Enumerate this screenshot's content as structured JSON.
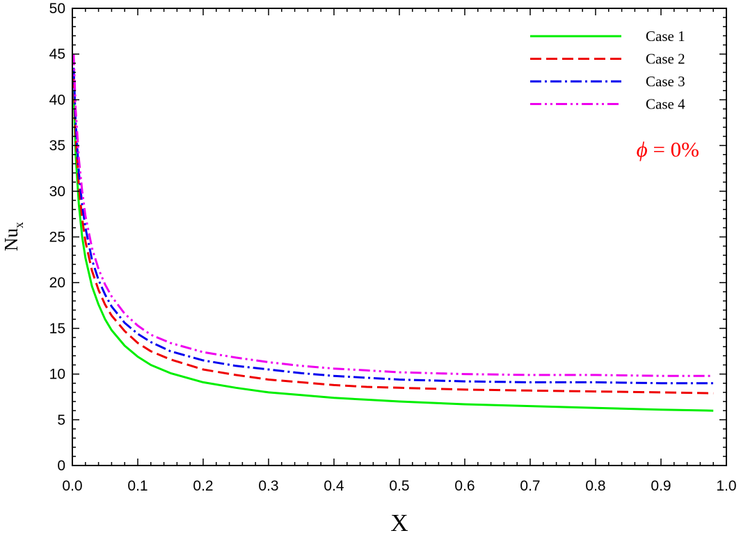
{
  "chart_data": {
    "type": "line",
    "title": "",
    "xlabel": "X",
    "ylabel": "Nu",
    "ylabel_subscript": "x",
    "xlim": [
      0,
      1.0
    ],
    "ylim": [
      0,
      50
    ],
    "xticks": [
      "0.0",
      "0.1",
      "0.2",
      "0.3",
      "0.4",
      "0.5",
      "0.6",
      "0.7",
      "0.8",
      "0.9",
      "1.0"
    ],
    "yticks": [
      "0",
      "5",
      "10",
      "15",
      "20",
      "25",
      "30",
      "35",
      "40",
      "45",
      "50"
    ],
    "grid": false,
    "legend_position": "top-right",
    "annotation": {
      "symbol": "ϕ",
      "text": " = 0%",
      "color": "#ff0000"
    },
    "series": [
      {
        "name": "Case 1",
        "color": "#00ee00",
        "style": "solid",
        "x": [
          0.002,
          0.005,
          0.01,
          0.015,
          0.02,
          0.03,
          0.04,
          0.05,
          0.06,
          0.08,
          0.1,
          0.12,
          0.15,
          0.2,
          0.25,
          0.3,
          0.35,
          0.4,
          0.45,
          0.5,
          0.6,
          0.7,
          0.8,
          0.9,
          0.98
        ],
        "y": [
          41.0,
          34.0,
          28.5,
          25.0,
          22.7,
          19.6,
          17.6,
          16.0,
          14.8,
          13.1,
          11.9,
          11.0,
          10.1,
          9.1,
          8.5,
          8.0,
          7.7,
          7.4,
          7.2,
          7.0,
          6.7,
          6.5,
          6.3,
          6.1,
          6.0
        ]
      },
      {
        "name": "Case 2",
        "color": "#ee0000",
        "style": "dashed",
        "x": [
          0.002,
          0.005,
          0.01,
          0.015,
          0.02,
          0.03,
          0.04,
          0.05,
          0.06,
          0.08,
          0.1,
          0.12,
          0.15,
          0.2,
          0.25,
          0.3,
          0.35,
          0.4,
          0.45,
          0.5,
          0.6,
          0.7,
          0.8,
          0.9,
          0.98
        ],
        "y": [
          42.5,
          36.0,
          30.5,
          27.0,
          24.5,
          21.3,
          19.2,
          17.6,
          16.4,
          14.7,
          13.4,
          12.5,
          11.6,
          10.5,
          9.9,
          9.4,
          9.1,
          8.8,
          8.6,
          8.5,
          8.3,
          8.2,
          8.1,
          8.0,
          7.9
        ]
      },
      {
        "name": "Case 3",
        "color": "#0000ee",
        "style": "dashdot",
        "x": [
          0.002,
          0.005,
          0.01,
          0.015,
          0.02,
          0.03,
          0.04,
          0.05,
          0.06,
          0.08,
          0.1,
          0.12,
          0.15,
          0.2,
          0.25,
          0.3,
          0.35,
          0.4,
          0.45,
          0.5,
          0.6,
          0.7,
          0.8,
          0.9,
          0.98
        ],
        "y": [
          43.5,
          37.5,
          32.0,
          28.5,
          26.0,
          22.5,
          20.3,
          18.7,
          17.4,
          15.6,
          14.4,
          13.5,
          12.5,
          11.5,
          10.9,
          10.5,
          10.1,
          9.8,
          9.6,
          9.4,
          9.2,
          9.1,
          9.1,
          9.0,
          9.0
        ]
      },
      {
        "name": "Case 4",
        "color": "#ee00ee",
        "style": "dashdotdot",
        "x": [
          0.002,
          0.005,
          0.01,
          0.015,
          0.02,
          0.03,
          0.04,
          0.05,
          0.06,
          0.08,
          0.1,
          0.12,
          0.15,
          0.2,
          0.25,
          0.3,
          0.35,
          0.4,
          0.45,
          0.5,
          0.6,
          0.7,
          0.8,
          0.9,
          0.98
        ],
        "y": [
          45.0,
          39.0,
          33.5,
          30.0,
          27.3,
          23.8,
          21.5,
          19.8,
          18.5,
          16.6,
          15.3,
          14.3,
          13.4,
          12.4,
          11.8,
          11.3,
          10.9,
          10.6,
          10.4,
          10.2,
          10.0,
          9.9,
          9.9,
          9.8,
          9.8
        ]
      }
    ]
  }
}
